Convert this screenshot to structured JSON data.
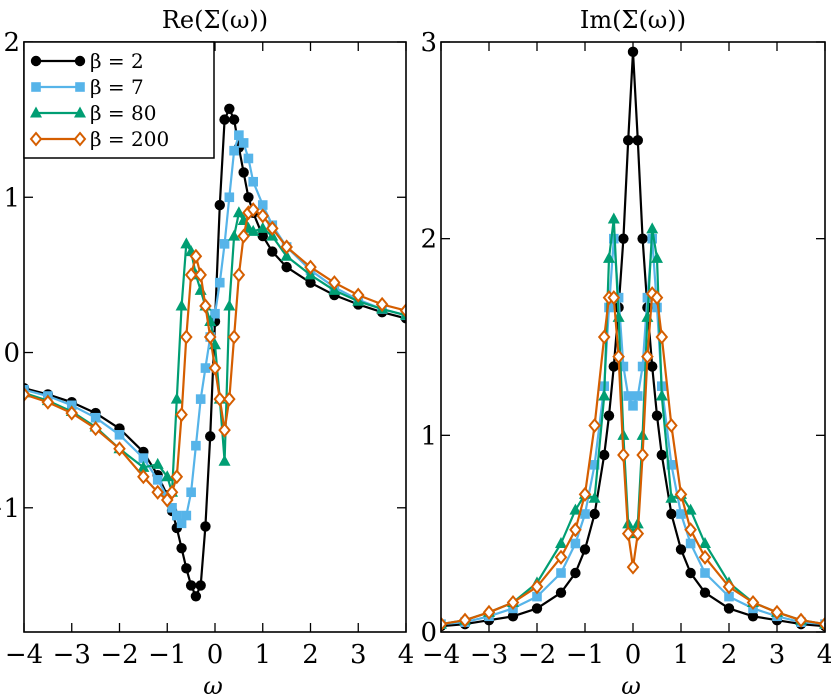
{
  "chart_data": [
    {
      "type": "line",
      "title": "Re(Σ(ω))",
      "xlabel": "ω",
      "ylabel": "",
      "xlim": [
        -4,
        4
      ],
      "ylim": [
        -1.8,
        2
      ],
      "xticks": [
        -4,
        -3,
        -2,
        -1,
        0,
        1,
        2,
        3,
        4
      ],
      "xtick_labels": [
        "−4",
        "−3",
        "−2",
        "−1",
        "0",
        "1",
        "2",
        "3",
        "4"
      ],
      "yticks": [
        -1,
        0,
        1,
        2
      ],
      "ytick_labels": [
        "−1",
        "0",
        "1",
        "2"
      ],
      "legend_position": "top-left",
      "series": [
        {
          "name": "β = 2",
          "color": "#000000",
          "marker": "circle",
          "x": [
            -4,
            -3.5,
            -3,
            -2.5,
            -2,
            -1.5,
            -1.2,
            -1,
            -0.9,
            -0.8,
            -0.7,
            -0.6,
            -0.5,
            -0.4,
            -0.3,
            -0.2,
            -0.1,
            0,
            0.1,
            0.2,
            0.3,
            0.4,
            0.5,
            0.6,
            0.7,
            0.8,
            1,
            1.2,
            1.5,
            2,
            2.5,
            3,
            3.5,
            4
          ],
          "y": [
            -0.23,
            -0.27,
            -0.32,
            -0.39,
            -0.49,
            -0.64,
            -0.79,
            -0.92,
            -1.02,
            -1.13,
            -1.26,
            -1.39,
            -1.5,
            -1.57,
            -1.5,
            -1.12,
            -0.54,
            0.2,
            0.95,
            1.5,
            1.57,
            1.5,
            1.32,
            1.16,
            1.0,
            0.9,
            0.75,
            0.65,
            0.55,
            0.45,
            0.37,
            0.31,
            0.26,
            0.22
          ]
        },
        {
          "name": "β = 7",
          "color": "#56B4E9",
          "marker": "square",
          "x": [
            -4,
            -3.5,
            -3,
            -2.5,
            -2,
            -1.5,
            -1.2,
            -1,
            -0.9,
            -0.8,
            -0.7,
            -0.6,
            -0.5,
            -0.4,
            -0.3,
            -0.2,
            -0.1,
            0,
            0.1,
            0.2,
            0.3,
            0.4,
            0.5,
            0.6,
            0.7,
            0.8,
            1,
            1.2,
            1.5,
            2,
            2.5,
            3,
            3.5,
            4
          ],
          "y": [
            -0.24,
            -0.28,
            -0.34,
            -0.42,
            -0.53,
            -0.68,
            -0.82,
            -0.93,
            -1.0,
            -1.05,
            -1.1,
            -1.05,
            -0.9,
            -0.6,
            -0.3,
            -0.1,
            0.1,
            0.25,
            0.45,
            0.7,
            1.0,
            1.3,
            1.4,
            1.35,
            1.25,
            1.1,
            0.95,
            0.82,
            0.68,
            0.53,
            0.42,
            0.34,
            0.28,
            0.24
          ]
        },
        {
          "name": "β = 80",
          "color": "#009E73",
          "marker": "triangle",
          "x": [
            -4,
            -3.5,
            -3,
            -2.5,
            -2,
            -1.5,
            -1.2,
            -1,
            -0.9,
            -0.8,
            -0.7,
            -0.6,
            -0.5,
            -0.4,
            -0.3,
            -0.2,
            -0.1,
            0,
            0.1,
            0.2,
            0.3,
            0.4,
            0.5,
            0.6,
            0.7,
            0.8,
            1,
            1.2,
            1.5,
            2,
            2.5,
            3,
            3.5,
            4
          ],
          "y": [
            -0.26,
            -0.31,
            -0.38,
            -0.48,
            -0.62,
            -0.74,
            -0.72,
            -0.8,
            -0.9,
            -0.3,
            0.3,
            0.7,
            0.65,
            0.5,
            0.4,
            0.3,
            0.2,
            0.05,
            -0.3,
            -0.7,
            0.3,
            0.75,
            0.9,
            0.85,
            0.8,
            0.78,
            0.8,
            0.75,
            0.62,
            0.5,
            0.4,
            0.33,
            0.28,
            0.24
          ]
        },
        {
          "name": "β = 200",
          "color": "#D55E00",
          "marker": "diamond",
          "x": [
            -4,
            -3.5,
            -3,
            -2.5,
            -2,
            -1.5,
            -1.2,
            -1,
            -0.9,
            -0.8,
            -0.7,
            -0.6,
            -0.5,
            -0.4,
            -0.3,
            -0.2,
            -0.1,
            0,
            0.1,
            0.2,
            0.3,
            0.4,
            0.5,
            0.6,
            0.7,
            0.8,
            1,
            1.2,
            1.5,
            2,
            2.5,
            3,
            3.5,
            4
          ],
          "y": [
            -0.27,
            -0.32,
            -0.39,
            -0.49,
            -0.62,
            -0.8,
            -0.9,
            -0.95,
            -0.9,
            -0.8,
            -0.4,
            0.1,
            0.5,
            0.62,
            0.5,
            0.3,
            0.1,
            -0.1,
            -0.3,
            -0.5,
            -0.3,
            0.1,
            0.5,
            0.75,
            0.9,
            0.92,
            0.88,
            0.8,
            0.68,
            0.55,
            0.45,
            0.37,
            0.31,
            0.27
          ]
        }
      ]
    },
    {
      "type": "line",
      "title": "Im(Σ(ω))",
      "xlabel": "ω",
      "ylabel": "",
      "xlim": [
        -4,
        4
      ],
      "ylim": [
        0,
        3
      ],
      "xticks": [
        -4,
        -3,
        -2,
        -1,
        0,
        1,
        2,
        3,
        4
      ],
      "xtick_labels": [
        "−4",
        "−3",
        "−2",
        "−1",
        "0",
        "1",
        "2",
        "3",
        "4"
      ],
      "yticks": [
        0,
        1,
        2,
        3
      ],
      "ytick_labels": [
        "0",
        "1",
        "2",
        "3"
      ],
      "series": [
        {
          "name": "β = 2",
          "color": "#000000",
          "marker": "circle",
          "x": [
            -4,
            -3.5,
            -3,
            -2.5,
            -2,
            -1.5,
            -1.2,
            -1,
            -0.8,
            -0.6,
            -0.5,
            -0.4,
            -0.3,
            -0.2,
            -0.1,
            0,
            0.1,
            0.2,
            0.3,
            0.4,
            0.5,
            0.6,
            0.8,
            1,
            1.2,
            1.5,
            2,
            2.5,
            3,
            3.5,
            4
          ],
          "y": [
            0.03,
            0.04,
            0.06,
            0.08,
            0.12,
            0.2,
            0.3,
            0.42,
            0.6,
            0.9,
            1.1,
            1.35,
            1.65,
            2.0,
            2.5,
            2.95,
            2.5,
            2.0,
            1.65,
            1.35,
            1.1,
            0.9,
            0.6,
            0.42,
            0.3,
            0.2,
            0.12,
            0.08,
            0.06,
            0.04,
            0.03
          ]
        },
        {
          "name": "β = 7",
          "color": "#56B4E9",
          "marker": "square",
          "x": [
            -4,
            -3.5,
            -3,
            -2.5,
            -2,
            -1.5,
            -1.2,
            -1,
            -0.8,
            -0.6,
            -0.5,
            -0.4,
            -0.3,
            -0.2,
            -0.1,
            0,
            0.1,
            0.2,
            0.3,
            0.4,
            0.5,
            0.6,
            0.8,
            1,
            1.2,
            1.5,
            2,
            2.5,
            3,
            3.5,
            4
          ],
          "y": [
            0.04,
            0.05,
            0.08,
            0.12,
            0.18,
            0.3,
            0.45,
            0.6,
            0.85,
            1.25,
            1.65,
            2.0,
            1.7,
            1.35,
            1.2,
            1.15,
            1.2,
            1.35,
            1.7,
            2.0,
            1.65,
            1.25,
            0.85,
            0.6,
            0.45,
            0.3,
            0.18,
            0.12,
            0.08,
            0.05,
            0.04
          ]
        },
        {
          "name": "β = 80",
          "color": "#009E73",
          "marker": "triangle",
          "x": [
            -4,
            -3.5,
            -3,
            -2.5,
            -2,
            -1.5,
            -1.2,
            -1,
            -0.8,
            -0.6,
            -0.5,
            -0.4,
            -0.3,
            -0.2,
            -0.1,
            0,
            0.1,
            0.2,
            0.3,
            0.4,
            0.5,
            0.6,
            0.8,
            1,
            1.2,
            1.5,
            2,
            2.5,
            3,
            3.5,
            4
          ],
          "y": [
            0.04,
            0.06,
            0.1,
            0.15,
            0.25,
            0.45,
            0.62,
            0.7,
            0.68,
            1.2,
            1.9,
            2.1,
            1.6,
            1.0,
            0.55,
            0.5,
            0.55,
            1.0,
            1.6,
            2.05,
            1.9,
            1.2,
            0.68,
            0.7,
            0.62,
            0.45,
            0.25,
            0.15,
            0.1,
            0.06,
            0.04
          ]
        },
        {
          "name": "β = 200",
          "color": "#D55E00",
          "marker": "diamond",
          "x": [
            -4,
            -3.5,
            -3,
            -2.5,
            -2,
            -1.5,
            -1.2,
            -1,
            -0.8,
            -0.6,
            -0.5,
            -0.4,
            -0.3,
            -0.2,
            -0.1,
            0,
            0.1,
            0.2,
            0.3,
            0.4,
            0.5,
            0.6,
            0.8,
            1,
            1.2,
            1.5,
            2,
            2.5,
            3,
            3.5,
            4
          ],
          "y": [
            0.04,
            0.06,
            0.1,
            0.15,
            0.23,
            0.38,
            0.52,
            0.7,
            1.05,
            1.5,
            1.7,
            1.7,
            1.4,
            0.9,
            0.5,
            0.33,
            0.5,
            0.9,
            1.4,
            1.72,
            1.7,
            1.5,
            1.05,
            0.7,
            0.52,
            0.38,
            0.23,
            0.15,
            0.1,
            0.06,
            0.04
          ]
        }
      ]
    }
  ]
}
